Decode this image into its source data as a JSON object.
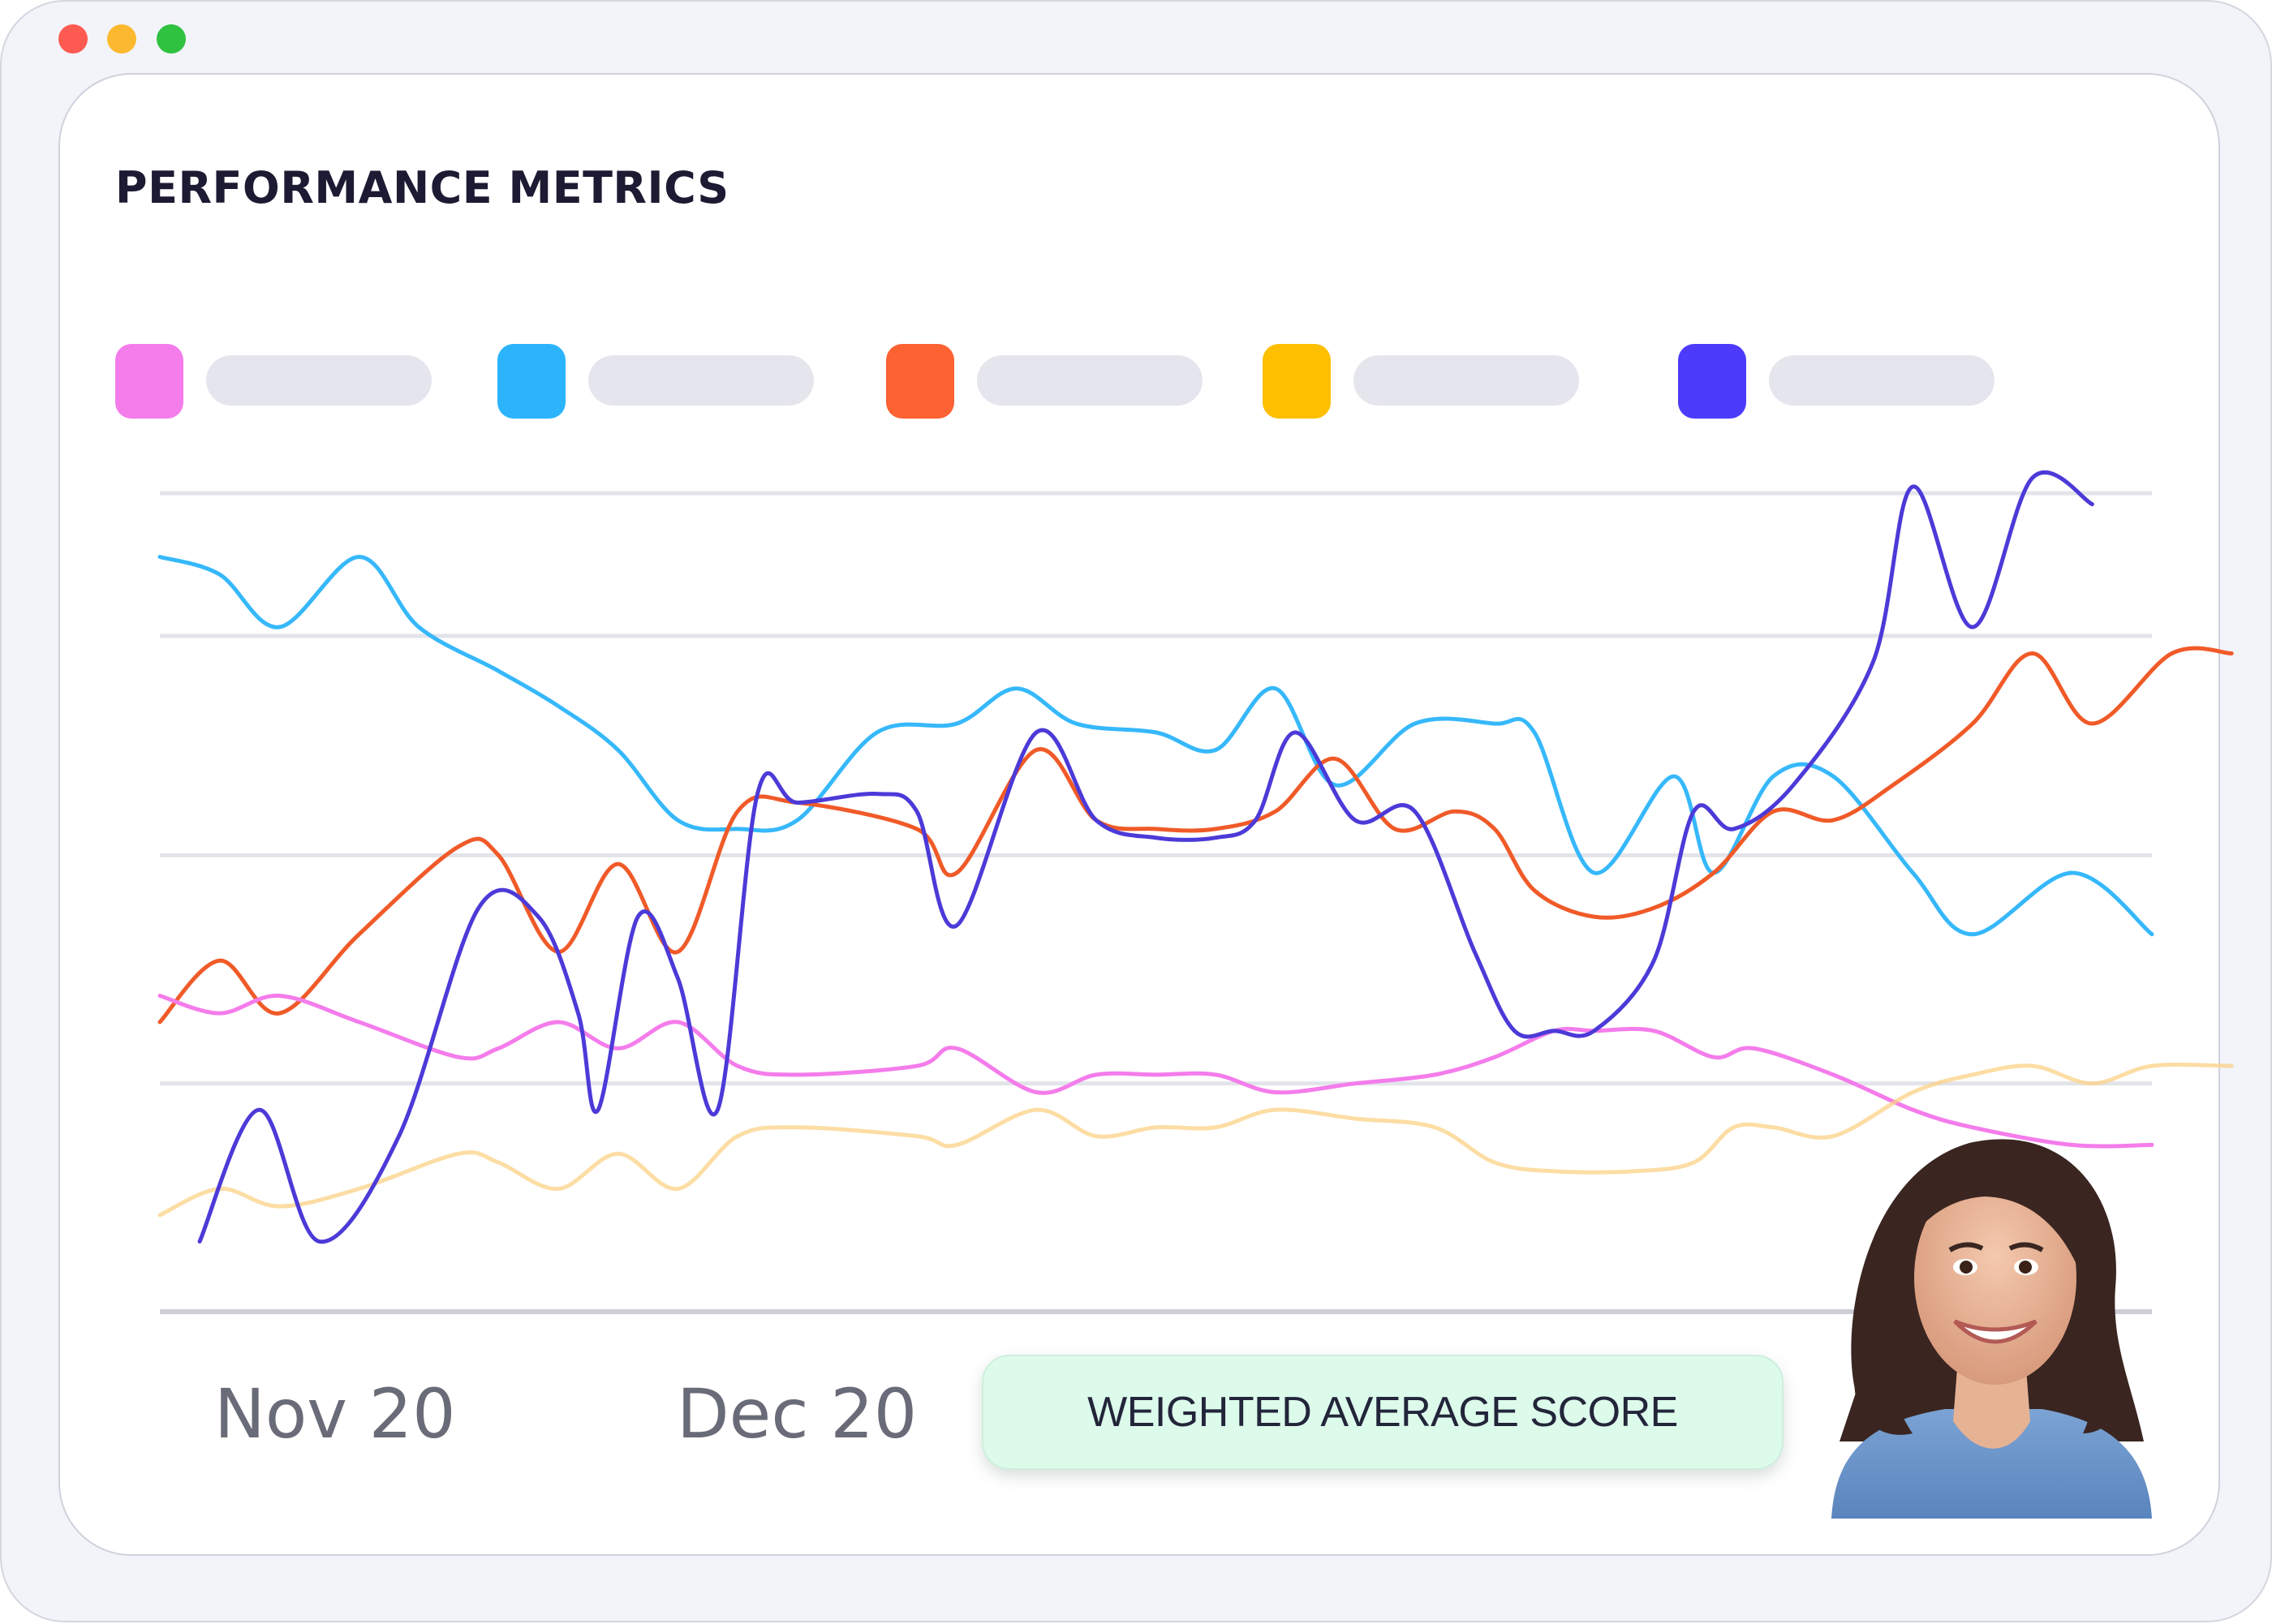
{
  "window": {
    "controls": [
      "close",
      "minimize",
      "maximize"
    ]
  },
  "title": "PERFORMANCE METRICS",
  "legend": [
    {
      "color": "#f47ceb",
      "label": ""
    },
    {
      "color": "#2bb4fb",
      "label": ""
    },
    {
      "color": "#fd6232",
      "label": ""
    },
    {
      "color": "#fdbf00",
      "label": ""
    },
    {
      "color": "#4d3bfb",
      "label": ""
    }
  ],
  "badge": {
    "label": "WEIGHTED AVERAGE SCORE"
  },
  "avatar": {
    "icon": "smiling-woman-photo"
  },
  "chart_data": {
    "type": "line",
    "x_tick_labels": [
      "Nov 20",
      "Dec 20"
    ],
    "y_gridlines": 5,
    "ylim": [
      0,
      100
    ],
    "legend_position": "top",
    "smooth": true,
    "series": [
      {
        "color": "#2bb4fb",
        "opacity": 0.95,
        "points": [
          [
            0,
            86
          ],
          [
            3,
            84
          ],
          [
            6,
            78
          ],
          [
            10,
            86
          ],
          [
            13,
            78
          ],
          [
            17,
            73
          ],
          [
            20,
            69
          ],
          [
            23,
            64
          ],
          [
            26,
            56
          ],
          [
            29,
            55
          ],
          [
            32,
            56
          ],
          [
            36,
            66
          ],
          [
            40,
            67
          ],
          [
            43,
            71
          ],
          [
            46,
            67
          ],
          [
            50,
            66
          ],
          [
            53,
            64
          ],
          [
            56,
            71
          ],
          [
            59,
            60
          ],
          [
            63,
            67
          ],
          [
            67,
            67
          ],
          [
            69,
            66
          ],
          [
            72,
            50
          ],
          [
            76,
            61
          ],
          [
            78,
            50
          ],
          [
            81,
            61
          ],
          [
            84,
            61
          ],
          [
            88,
            50
          ],
          [
            91,
            43
          ],
          [
            96,
            50
          ],
          [
            100,
            43
          ]
        ]
      },
      {
        "color": "#f05a28",
        "opacity": 1,
        "points": [
          [
            0,
            33
          ],
          [
            3,
            40
          ],
          [
            6,
            34
          ],
          [
            10,
            43
          ],
          [
            15,
            53
          ],
          [
            17,
            52
          ],
          [
            20,
            41
          ],
          [
            23,
            51
          ],
          [
            26,
            41
          ],
          [
            29,
            57
          ],
          [
            32,
            58
          ],
          [
            38,
            55
          ],
          [
            40,
            50
          ],
          [
            44,
            64
          ],
          [
            47,
            56
          ],
          [
            50,
            55
          ],
          [
            53,
            55
          ],
          [
            56,
            57
          ],
          [
            59,
            63
          ],
          [
            62,
            55
          ],
          [
            65,
            57
          ],
          [
            67,
            55
          ],
          [
            69,
            48
          ],
          [
            72,
            45
          ],
          [
            75,
            46
          ],
          [
            78,
            50
          ],
          [
            81,
            57
          ],
          [
            84,
            56
          ],
          [
            87,
            60
          ],
          [
            91,
            67
          ],
          [
            94,
            75
          ],
          [
            97,
            67
          ],
          [
            101,
            75
          ],
          [
            104,
            75
          ]
        ]
      },
      {
        "color": "#f47ceb",
        "opacity": 1,
        "points": [
          [
            0,
            36
          ],
          [
            3,
            34
          ],
          [
            6,
            36
          ],
          [
            10,
            33
          ],
          [
            15,
            29
          ],
          [
            17,
            30
          ],
          [
            20,
            33
          ],
          [
            23,
            30
          ],
          [
            26,
            33
          ],
          [
            29,
            28
          ],
          [
            32,
            27
          ],
          [
            38,
            28
          ],
          [
            40,
            30
          ],
          [
            44,
            25
          ],
          [
            47,
            27
          ],
          [
            50,
            27
          ],
          [
            53,
            27
          ],
          [
            56,
            25
          ],
          [
            60,
            26
          ],
          [
            64,
            27
          ],
          [
            67,
            29
          ],
          [
            70,
            32
          ],
          [
            72,
            32
          ],
          [
            75,
            32
          ],
          [
            78,
            29
          ],
          [
            80,
            30
          ],
          [
            84,
            27
          ],
          [
            88,
            23
          ],
          [
            91,
            21
          ],
          [
            96,
            19
          ],
          [
            100,
            19
          ]
        ]
      },
      {
        "color": "#fbd185",
        "opacity": 0.75,
        "points": [
          [
            0,
            11
          ],
          [
            3,
            14
          ],
          [
            6,
            12
          ],
          [
            10,
            14
          ],
          [
            15,
            18
          ],
          [
            17,
            17
          ],
          [
            20,
            14
          ],
          [
            23,
            18
          ],
          [
            26,
            14
          ],
          [
            29,
            20
          ],
          [
            32,
            21
          ],
          [
            38,
            20
          ],
          [
            40,
            19
          ],
          [
            44,
            23
          ],
          [
            47,
            20
          ],
          [
            50,
            21
          ],
          [
            53,
            21
          ],
          [
            56,
            23
          ],
          [
            60,
            22
          ],
          [
            64,
            21
          ],
          [
            67,
            17
          ],
          [
            70,
            16
          ],
          [
            74,
            16
          ],
          [
            77,
            17
          ],
          [
            79,
            21
          ],
          [
            81,
            21
          ],
          [
            84,
            20
          ],
          [
            88,
            25
          ],
          [
            91,
            27
          ],
          [
            94,
            28
          ],
          [
            97,
            26
          ],
          [
            100,
            28
          ],
          [
            104,
            28
          ]
        ]
      },
      {
        "color": "#4c3ad8",
        "opacity": 1,
        "points": [
          [
            2,
            8
          ],
          [
            5,
            23
          ],
          [
            8,
            8
          ],
          [
            12,
            20
          ],
          [
            16,
            46
          ],
          [
            19,
            45
          ],
          [
            21,
            34
          ],
          [
            22,
            23
          ],
          [
            24,
            45
          ],
          [
            26,
            38
          ],
          [
            28,
            23
          ],
          [
            30,
            59
          ],
          [
            32,
            58
          ],
          [
            36,
            59
          ],
          [
            38,
            57
          ],
          [
            40,
            44
          ],
          [
            44,
            66
          ],
          [
            47,
            56
          ],
          [
            50,
            54
          ],
          [
            53,
            54
          ],
          [
            55,
            56
          ],
          [
            57,
            66
          ],
          [
            60,
            56
          ],
          [
            63,
            57
          ],
          [
            66,
            41
          ],
          [
            68,
            32
          ],
          [
            70,
            32
          ],
          [
            72,
            32
          ],
          [
            75,
            40
          ],
          [
            77,
            57
          ],
          [
            79,
            55
          ],
          [
            82,
            60
          ],
          [
            86,
            74
          ],
          [
            88,
            94
          ],
          [
            91,
            78
          ],
          [
            94,
            95
          ],
          [
            97,
            92
          ]
        ]
      }
    ]
  }
}
